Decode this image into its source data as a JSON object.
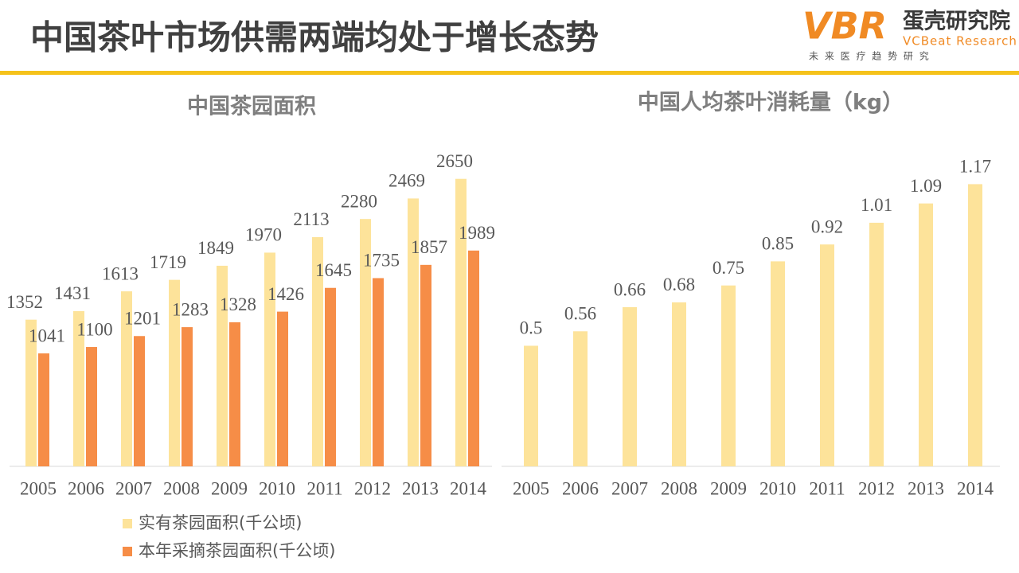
{
  "header": {
    "title": "中国茶叶市场供需两端均处于增长态势"
  },
  "logo": {
    "mark": "VBR",
    "name": "蛋壳研究院",
    "english": "VCBeat Research",
    "slogan": "未 来 医 疗 趋 势 研 究"
  },
  "chart_data": [
    {
      "type": "bar",
      "title": "中国茶园面积",
      "categories": [
        "2005",
        "2006",
        "2007",
        "2008",
        "2009",
        "2010",
        "2011",
        "2012",
        "2013",
        "2014"
      ],
      "series": [
        {
          "name": "实有茶园面积(千公顷)",
          "color": "#fde39a",
          "values": [
            1352,
            1431,
            1613,
            1719,
            1849,
            1970,
            2113,
            2280,
            2469,
            2650
          ]
        },
        {
          "name": "本年采摘茶园面积(千公顷)",
          "color": "#f68d47",
          "values": [
            1041,
            1100,
            1201,
            1283,
            1328,
            1426,
            1645,
            1735,
            1857,
            1989
          ]
        }
      ],
      "ylim": [
        0,
        3000
      ],
      "legend": "bottom"
    },
    {
      "type": "bar",
      "title": "中国人均茶叶消耗量（kg）",
      "categories": [
        "2005",
        "2006",
        "2007",
        "2008",
        "2009",
        "2010",
        "2011",
        "2012",
        "2013",
        "2014"
      ],
      "values": [
        0.5,
        0.56,
        0.66,
        0.68,
        0.75,
        0.85,
        0.92,
        1.01,
        1.09,
        1.17
      ],
      "color": "#fde39a",
      "ylim": [
        0,
        1.3
      ]
    }
  ]
}
